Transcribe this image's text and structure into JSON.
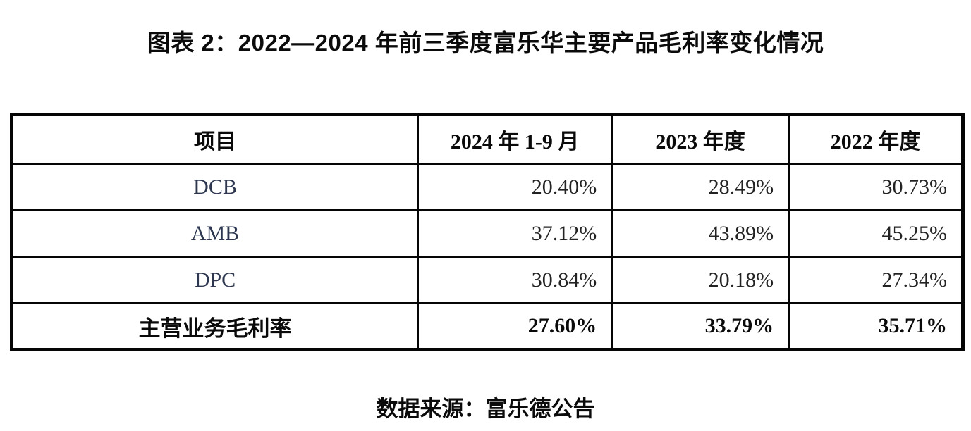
{
  "title": "图表 2：2022—2024 年前三季度富乐华主要产品毛利率变化情况",
  "source": "数据来源：富乐德公告",
  "colors": {
    "row_label_navy": "#2d3750",
    "value_text": "#232323",
    "border": "#050505"
  },
  "chart_data": {
    "type": "table",
    "title": "2022—2024 年前三季度富乐华主要产品毛利率变化情况",
    "columns": [
      "项目",
      "2024 年 1-9 月",
      "2023 年度",
      "2022 年度"
    ],
    "rows": [
      {
        "label": "DCB",
        "values": [
          "20.40%",
          "28.49%",
          "30.73%"
        ]
      },
      {
        "label": "AMB",
        "values": [
          "37.12%",
          "43.89%",
          "45.25%"
        ]
      },
      {
        "label": "DPC",
        "values": [
          "30.84%",
          "20.18%",
          "27.34%"
        ]
      },
      {
        "label": "主营业务毛利率",
        "values": [
          "27.60%",
          "33.79%",
          "35.71%"
        ]
      }
    ]
  }
}
